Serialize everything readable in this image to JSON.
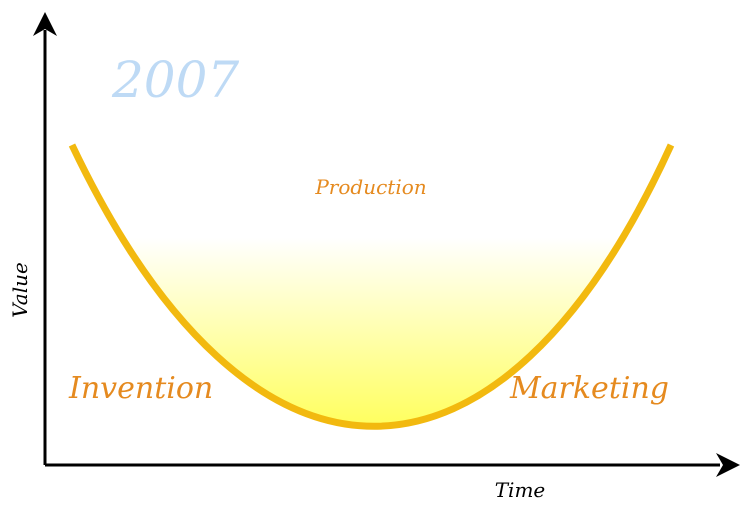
{
  "year_label": "2007",
  "axes": {
    "x_label": "Time",
    "y_label": "Value"
  },
  "stages": {
    "left": "Invention",
    "middle": "Production",
    "right": "Marketing"
  },
  "colors": {
    "curve": "#f2b90f",
    "fill_top": "#ffffff",
    "fill_bottom": "#ffff5e",
    "stage_text": "#e58a1f",
    "year_text": "#bedaf5",
    "axis": "#000000"
  }
}
